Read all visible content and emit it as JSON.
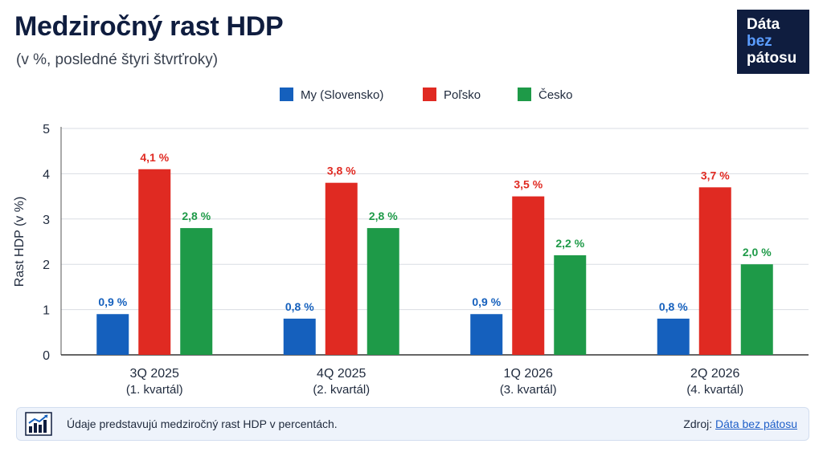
{
  "header": {
    "title": "Medziročný rast HDP",
    "subtitle": "(v %, posledné štyri štvrťroky)"
  },
  "logo": {
    "line1": "Dáta",
    "line2": "bez",
    "line3": "pátosu"
  },
  "chart_data": {
    "type": "bar",
    "categories": [
      "3Q 2025",
      "4Q 2025",
      "1Q 2026",
      "2Q 2026"
    ],
    "category_sublabels": [
      "(1. kvartál)",
      "(2. kvartál)",
      "(3. kvartál)",
      "(4. kvartál)"
    ],
    "series": [
      {
        "name": "My (Slovensko)",
        "color": "#1560bd",
        "values": [
          0.9,
          0.8,
          0.9,
          0.8
        ],
        "labels": [
          "0,9 %",
          "0,8 %",
          "0,9 %",
          "0,8 %"
        ]
      },
      {
        "name": "Poľsko",
        "color": "#e02a22",
        "values": [
          4.1,
          3.8,
          3.5,
          3.7
        ],
        "labels": [
          "4,1 %",
          "3,8 %",
          "3,5 %",
          "3,7 %"
        ]
      },
      {
        "name": "Česko",
        "color": "#1e9a48",
        "values": [
          2.8,
          2.8,
          2.2,
          2.0
        ],
        "labels": [
          "2,8 %",
          "2,8 %",
          "2,2 %",
          "2,0 %"
        ]
      }
    ],
    "ylabel": "Rast HDP (v %)",
    "ylim": [
      0,
      5
    ],
    "yticks": [
      "0",
      "1",
      "2",
      "3",
      "4",
      "5"
    ],
    "grid": true,
    "legend_position": "top-center"
  },
  "footer": {
    "note": "Údaje predstavujú medziročný rast HDP v percentách.",
    "source_label": "Zdroj:",
    "source_link": "Dáta bez pátosu"
  }
}
